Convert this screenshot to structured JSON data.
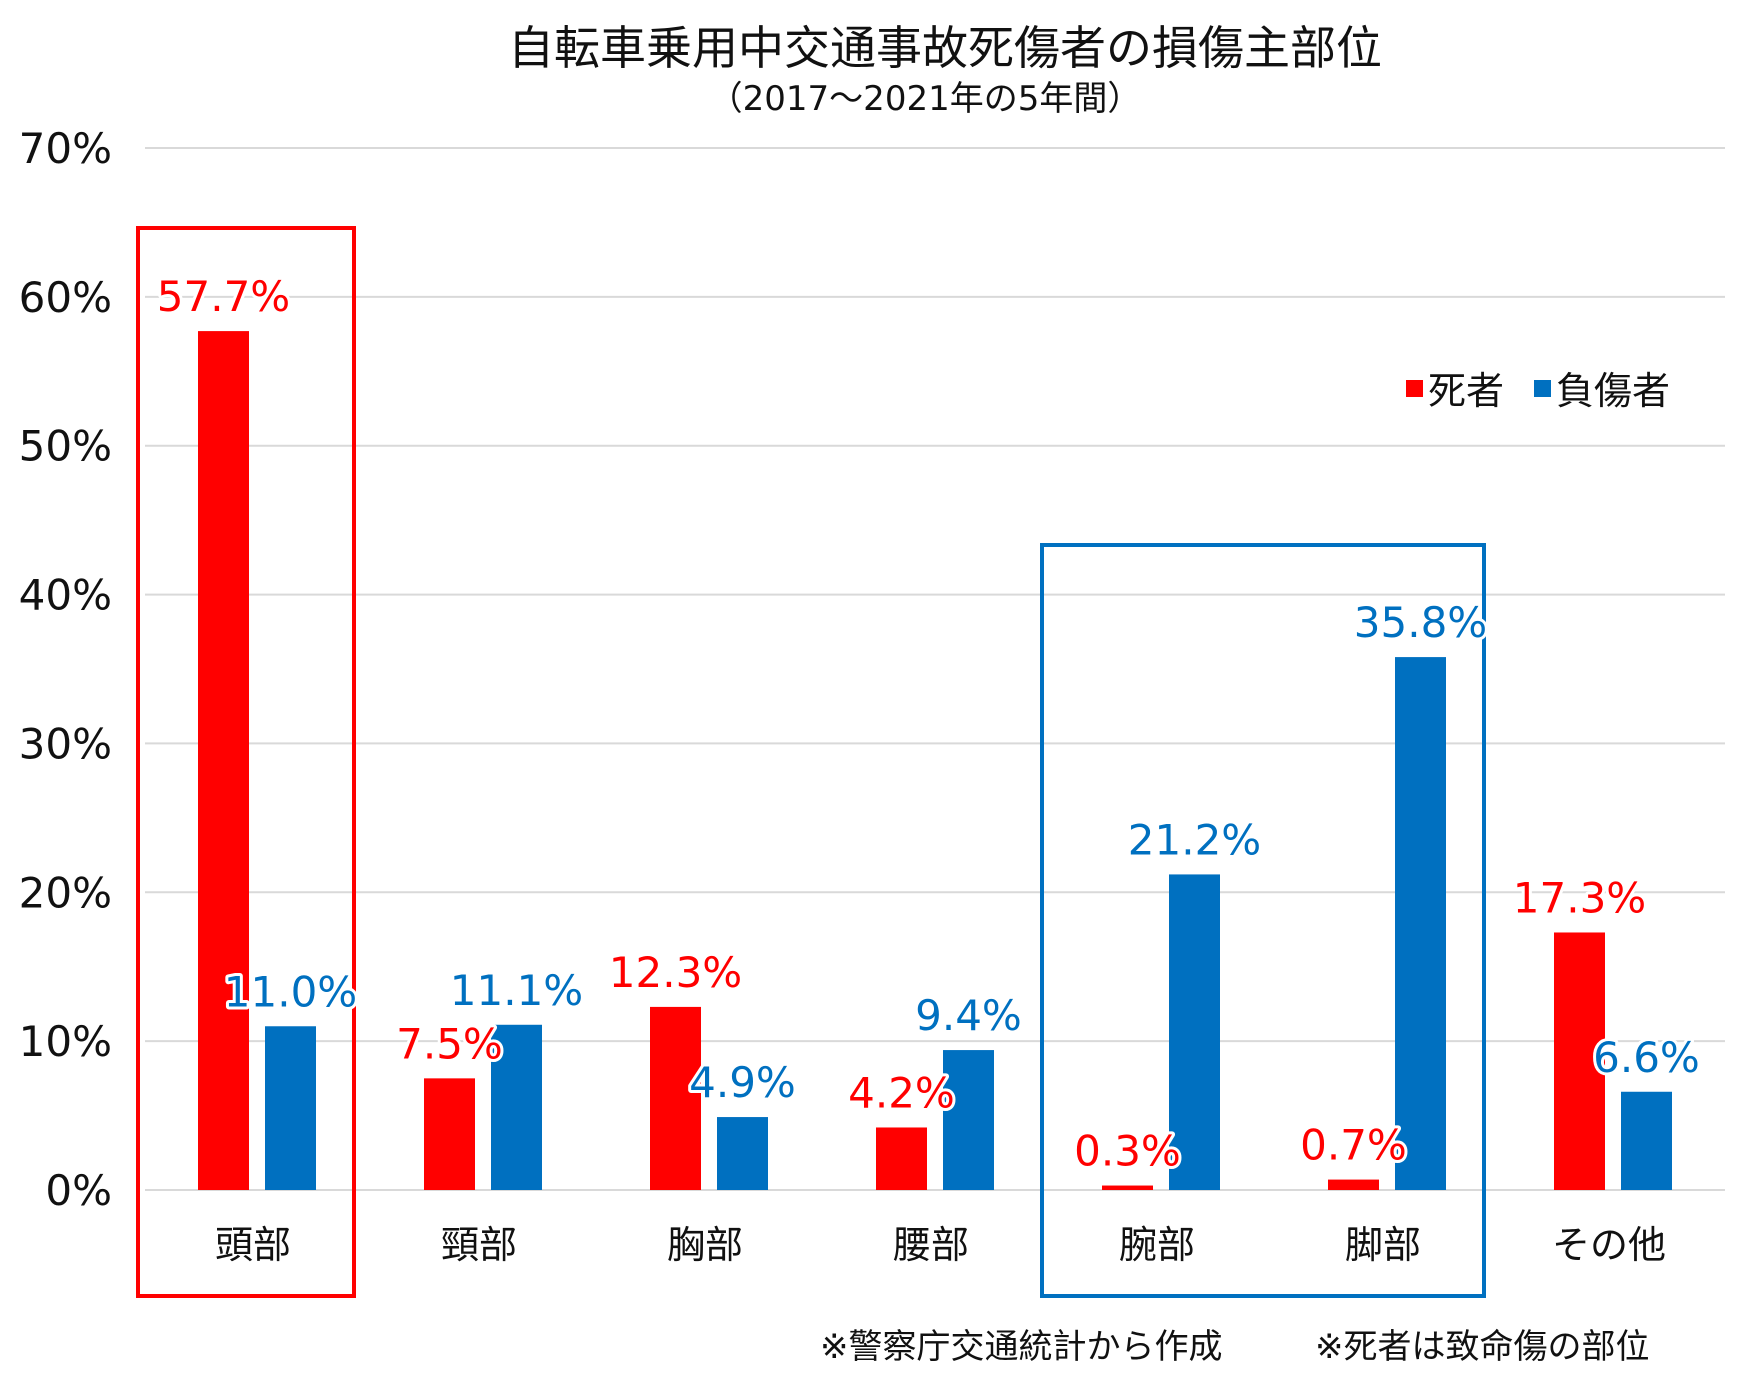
{
  "colors": {
    "deaths": "#ff0000",
    "injuries": "#0070c0",
    "grid": "#d9d9d9",
    "text": "#111111"
  },
  "chart_data": {
    "type": "bar",
    "title": "自転車乗用中交通事故死傷者の損傷主部位",
    "subtitle": "（2017～2021年の5年間）",
    "categories": [
      "頭部",
      "頸部",
      "胸部",
      "腰部",
      "腕部",
      "脚部",
      "その他"
    ],
    "series": [
      {
        "name": "死者",
        "color": "#ff0000",
        "values": [
          57.7,
          7.5,
          12.3,
          4.2,
          0.3,
          0.7,
          17.3
        ],
        "labels": [
          "57.7%",
          "7.5%",
          "12.3%",
          "4.2%",
          "0.3%",
          "0.7%",
          "17.3%"
        ]
      },
      {
        "name": "負傷者",
        "color": "#0070c0",
        "values": [
          11.0,
          11.1,
          4.9,
          9.4,
          21.2,
          35.8,
          6.6
        ],
        "labels": [
          "11.0%",
          "11.1%",
          "4.9%",
          "9.4%",
          "21.2%",
          "35.8%",
          "6.6%"
        ]
      }
    ],
    "ylim": [
      0,
      70
    ],
    "yticks": [
      "0%",
      "10%",
      "20%",
      "30%",
      "40%",
      "50%",
      "60%",
      "70%"
    ],
    "grid": true,
    "legend_position": "top-right",
    "highlights": [
      {
        "categories": [
          "頭部"
        ],
        "color": "#ff0000"
      },
      {
        "categories": [
          "腕部",
          "脚部"
        ],
        "color": "#0070c0"
      }
    ]
  },
  "notes": {
    "source": "※警察庁交通統計から作成",
    "definition": "※死者は致命傷の部位"
  }
}
